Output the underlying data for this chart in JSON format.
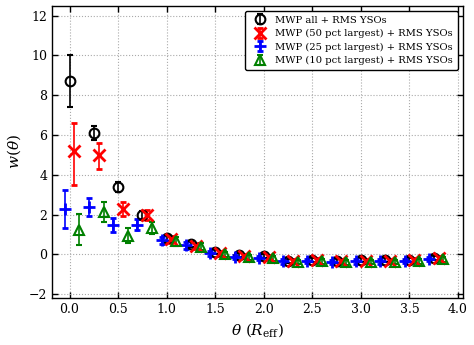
{
  "title": "",
  "xlabel": "$\\theta$ ($R_{\\rm eff}$)",
  "ylabel": "$w(\\theta)$",
  "xlim": [
    -0.18,
    4.05
  ],
  "ylim": [
    -2.2,
    12.5
  ],
  "yticks": [
    -2,
    0,
    2,
    4,
    6,
    8,
    10,
    12
  ],
  "xticks": [
    0.0,
    0.5,
    1.0,
    1.5,
    2.0,
    2.5,
    3.0,
    3.5,
    4.0
  ],
  "series": [
    {
      "label": "MWP all + RMS YSOs",
      "color": "black",
      "marker": "o",
      "markersize": 7,
      "fillstyle": "none",
      "mew": 1.5,
      "x": [
        0.0,
        0.25,
        0.5,
        0.75,
        1.0,
        1.25,
        1.5,
        1.75,
        2.0,
        2.25,
        2.5,
        2.75,
        3.0,
        3.25,
        3.5,
        3.75
      ],
      "y": [
        8.7,
        6.1,
        3.4,
        2.0,
        0.8,
        0.5,
        0.1,
        -0.05,
        -0.1,
        -0.35,
        -0.3,
        -0.35,
        -0.3,
        -0.3,
        -0.3,
        -0.2
      ],
      "yerr_lo": [
        1.3,
        0.35,
        0.25,
        0.2,
        0.15,
        0.12,
        0.1,
        0.1,
        0.1,
        0.1,
        0.1,
        0.1,
        0.1,
        0.1,
        0.1,
        0.1
      ],
      "yerr_hi": [
        1.3,
        0.35,
        0.25,
        0.2,
        0.15,
        0.12,
        0.1,
        0.1,
        0.1,
        0.1,
        0.1,
        0.1,
        0.1,
        0.1,
        0.1,
        0.1
      ]
    },
    {
      "label": "MWP (50 pct largest) + RMS YSOs",
      "color": "red",
      "marker": "x",
      "markersize": 9,
      "fillstyle": "full",
      "mew": 2.0,
      "x": [
        0.05,
        0.3,
        0.55,
        0.8,
        1.05,
        1.3,
        1.55,
        1.8,
        2.05,
        2.3,
        2.55,
        2.8,
        3.05,
        3.3,
        3.55,
        3.8
      ],
      "y": [
        5.2,
        5.0,
        2.3,
        2.0,
        0.75,
        0.4,
        0.05,
        -0.1,
        -0.15,
        -0.35,
        -0.3,
        -0.35,
        -0.35,
        -0.35,
        -0.3,
        -0.2
      ],
      "yerr_lo": [
        1.7,
        0.7,
        0.35,
        0.25,
        0.18,
        0.15,
        0.12,
        0.1,
        0.1,
        0.1,
        0.1,
        0.1,
        0.1,
        0.1,
        0.1,
        0.1
      ],
      "yerr_hi": [
        1.4,
        0.6,
        0.35,
        0.25,
        0.18,
        0.15,
        0.12,
        0.1,
        0.1,
        0.1,
        0.1,
        0.1,
        0.1,
        0.1,
        0.1,
        0.1
      ]
    },
    {
      "label": "MWP (25 pct largest) + RMS YSOs",
      "color": "blue",
      "marker": "+",
      "markersize": 9,
      "fillstyle": "full",
      "mew": 2.0,
      "x": [
        -0.05,
        0.2,
        0.45,
        0.7,
        0.95,
        1.2,
        1.45,
        1.7,
        1.95,
        2.2,
        2.45,
        2.7,
        2.95,
        3.2,
        3.45,
        3.7
      ],
      "y": [
        2.3,
        2.4,
        1.5,
        1.5,
        0.7,
        0.45,
        0.05,
        -0.12,
        -0.18,
        -0.35,
        -0.32,
        -0.38,
        -0.35,
        -0.35,
        -0.32,
        -0.22
      ],
      "yerr_lo": [
        0.95,
        0.45,
        0.35,
        0.28,
        0.2,
        0.16,
        0.13,
        0.11,
        0.11,
        0.11,
        0.11,
        0.11,
        0.11,
        0.11,
        0.11,
        0.11
      ],
      "yerr_hi": [
        0.95,
        0.45,
        0.35,
        0.28,
        0.2,
        0.16,
        0.13,
        0.11,
        0.11,
        0.11,
        0.11,
        0.11,
        0.11,
        0.11,
        0.11,
        0.11
      ]
    },
    {
      "label": "MWP (10 pct largest) + RMS YSOs",
      "color": "green",
      "marker": "^",
      "markersize": 7,
      "fillstyle": "none",
      "mew": 1.5,
      "x": [
        0.1,
        0.35,
        0.6,
        0.85,
        1.1,
        1.35,
        1.6,
        1.85,
        2.1,
        2.35,
        2.6,
        2.85,
        3.1,
        3.35,
        3.6,
        3.85
      ],
      "y": [
        1.25,
        2.15,
        0.95,
        1.35,
        0.65,
        0.38,
        0.0,
        -0.15,
        -0.2,
        -0.38,
        -0.34,
        -0.4,
        -0.38,
        -0.38,
        -0.35,
        -0.25
      ],
      "yerr_lo": [
        0.8,
        0.5,
        0.38,
        0.3,
        0.22,
        0.17,
        0.14,
        0.12,
        0.12,
        0.12,
        0.12,
        0.12,
        0.12,
        0.12,
        0.12,
        0.12
      ],
      "yerr_hi": [
        0.8,
        0.5,
        0.38,
        0.3,
        0.22,
        0.17,
        0.14,
        0.12,
        0.12,
        0.12,
        0.12,
        0.12,
        0.12,
        0.12,
        0.12,
        0.12
      ]
    }
  ],
  "legend_loc": "upper right",
  "background_color": "white",
  "grid_color": "#aaaaaa",
  "grid_linestyle": ":",
  "grid_linewidth": 0.8
}
